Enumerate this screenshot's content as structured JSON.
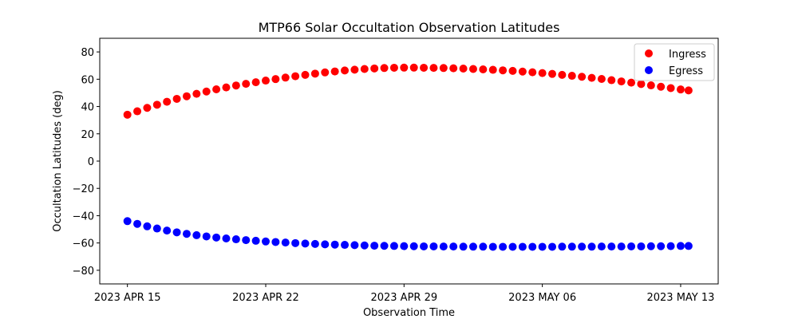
{
  "chart_data": {
    "type": "scatter",
    "title": "MTP66 Solar Occultation Observation Latitudes",
    "xlabel": "Observation Time",
    "ylabel": "Occultation Latitudes (deg)",
    "x_unit": "days since 2023 APR 15",
    "xlim": [
      -1.4,
      29.9
    ],
    "ylim": [
      -90,
      90
    ],
    "x_ticks": [
      {
        "value": 0,
        "label": "2023 APR 15"
      },
      {
        "value": 7,
        "label": "2023 APR 22"
      },
      {
        "value": 14,
        "label": "2023 APR 29"
      },
      {
        "value": 21,
        "label": "2023 MAY 06"
      },
      {
        "value": 28,
        "label": "2023 MAY 13"
      }
    ],
    "y_ticks": [
      80,
      60,
      40,
      20,
      0,
      -20,
      -40,
      -60,
      -80
    ],
    "legend_position": "top-right",
    "series": [
      {
        "name": "Ingress",
        "color": "#ff0000",
        "points": [
          [
            0,
            34
          ],
          [
            0.5,
            36.5
          ],
          [
            1,
            39
          ],
          [
            1.5,
            41.3
          ],
          [
            2,
            43.5
          ],
          [
            2.5,
            45.6
          ],
          [
            3,
            47.5
          ],
          [
            3.5,
            49.3
          ],
          [
            4,
            51
          ],
          [
            4.5,
            52.6
          ],
          [
            5,
            54
          ],
          [
            5.5,
            55.4
          ],
          [
            6,
            56.6
          ],
          [
            6.5,
            57.8
          ],
          [
            7,
            59
          ],
          [
            7.5,
            60.1
          ],
          [
            8,
            61.2
          ],
          [
            8.5,
            62.2
          ],
          [
            9,
            63.2
          ],
          [
            9.5,
            64.1
          ],
          [
            10,
            65
          ],
          [
            10.5,
            65.7
          ],
          [
            11,
            66.4
          ],
          [
            11.5,
            67
          ],
          [
            12,
            67.5
          ],
          [
            12.5,
            67.9
          ],
          [
            13,
            68.2
          ],
          [
            13.5,
            68.4
          ],
          [
            14,
            68.5
          ],
          [
            14.5,
            68.5
          ],
          [
            15,
            68.4
          ],
          [
            15.5,
            68.3
          ],
          [
            16,
            68.2
          ],
          [
            16.5,
            68
          ],
          [
            17,
            67.8
          ],
          [
            17.5,
            67.5
          ],
          [
            18,
            67.2
          ],
          [
            18.5,
            66.9
          ],
          [
            19,
            66.5
          ],
          [
            19.5,
            66.1
          ],
          [
            20,
            65.6
          ],
          [
            20.5,
            65.1
          ],
          [
            21,
            64.5
          ],
          [
            21.5,
            63.9
          ],
          [
            22,
            63.2
          ],
          [
            22.5,
            62.5
          ],
          [
            23,
            61.8
          ],
          [
            23.5,
            61
          ],
          [
            24,
            60.2
          ],
          [
            24.5,
            59.3
          ],
          [
            25,
            58.4
          ],
          [
            25.5,
            57.5
          ],
          [
            26,
            56.5
          ],
          [
            26.5,
            55.5
          ],
          [
            27,
            54.5
          ],
          [
            27.5,
            53.5
          ],
          [
            28,
            52.5
          ],
          [
            28.4,
            51.8
          ]
        ]
      },
      {
        "name": "Egress",
        "color": "#0000ff",
        "points": [
          [
            0,
            -44
          ],
          [
            0.5,
            -46
          ],
          [
            1,
            -47.8
          ],
          [
            1.5,
            -49.4
          ],
          [
            2,
            -50.9
          ],
          [
            2.5,
            -52.2
          ],
          [
            3,
            -53.3
          ],
          [
            3.5,
            -54.3
          ],
          [
            4,
            -55.2
          ],
          [
            4.5,
            -56
          ],
          [
            5,
            -56.7
          ],
          [
            5.5,
            -57.3
          ],
          [
            6,
            -57.9
          ],
          [
            6.5,
            -58.4
          ],
          [
            7,
            -58.9
          ],
          [
            7.5,
            -59.3
          ],
          [
            8,
            -59.7
          ],
          [
            8.5,
            -60.1
          ],
          [
            9,
            -60.4
          ],
          [
            9.5,
            -60.7
          ],
          [
            10,
            -61
          ],
          [
            10.5,
            -61.2
          ],
          [
            11,
            -61.4
          ],
          [
            11.5,
            -61.6
          ],
          [
            12,
            -61.8
          ],
          [
            12.5,
            -62
          ],
          [
            13,
            -62.1
          ],
          [
            13.5,
            -62.2
          ],
          [
            14,
            -62.3
          ],
          [
            14.5,
            -62.4
          ],
          [
            15,
            -62.5
          ],
          [
            15.5,
            -62.5
          ],
          [
            16,
            -62.6
          ],
          [
            16.5,
            -62.6
          ],
          [
            17,
            -62.7
          ],
          [
            17.5,
            -62.7
          ],
          [
            18,
            -62.7
          ],
          [
            18.5,
            -62.8
          ],
          [
            19,
            -62.8
          ],
          [
            19.5,
            -62.8
          ],
          [
            20,
            -62.8
          ],
          [
            20.5,
            -62.8
          ],
          [
            21,
            -62.8
          ],
          [
            21.5,
            -62.8
          ],
          [
            22,
            -62.7
          ],
          [
            22.5,
            -62.7
          ],
          [
            23,
            -62.7
          ],
          [
            23.5,
            -62.7
          ],
          [
            24,
            -62.6
          ],
          [
            24.5,
            -62.6
          ],
          [
            25,
            -62.6
          ],
          [
            25.5,
            -62.5
          ],
          [
            26,
            -62.5
          ],
          [
            26.5,
            -62.4
          ],
          [
            27,
            -62.4
          ],
          [
            27.5,
            -62.3
          ],
          [
            28,
            -62.2
          ],
          [
            28.4,
            -62.2
          ]
        ]
      }
    ]
  }
}
